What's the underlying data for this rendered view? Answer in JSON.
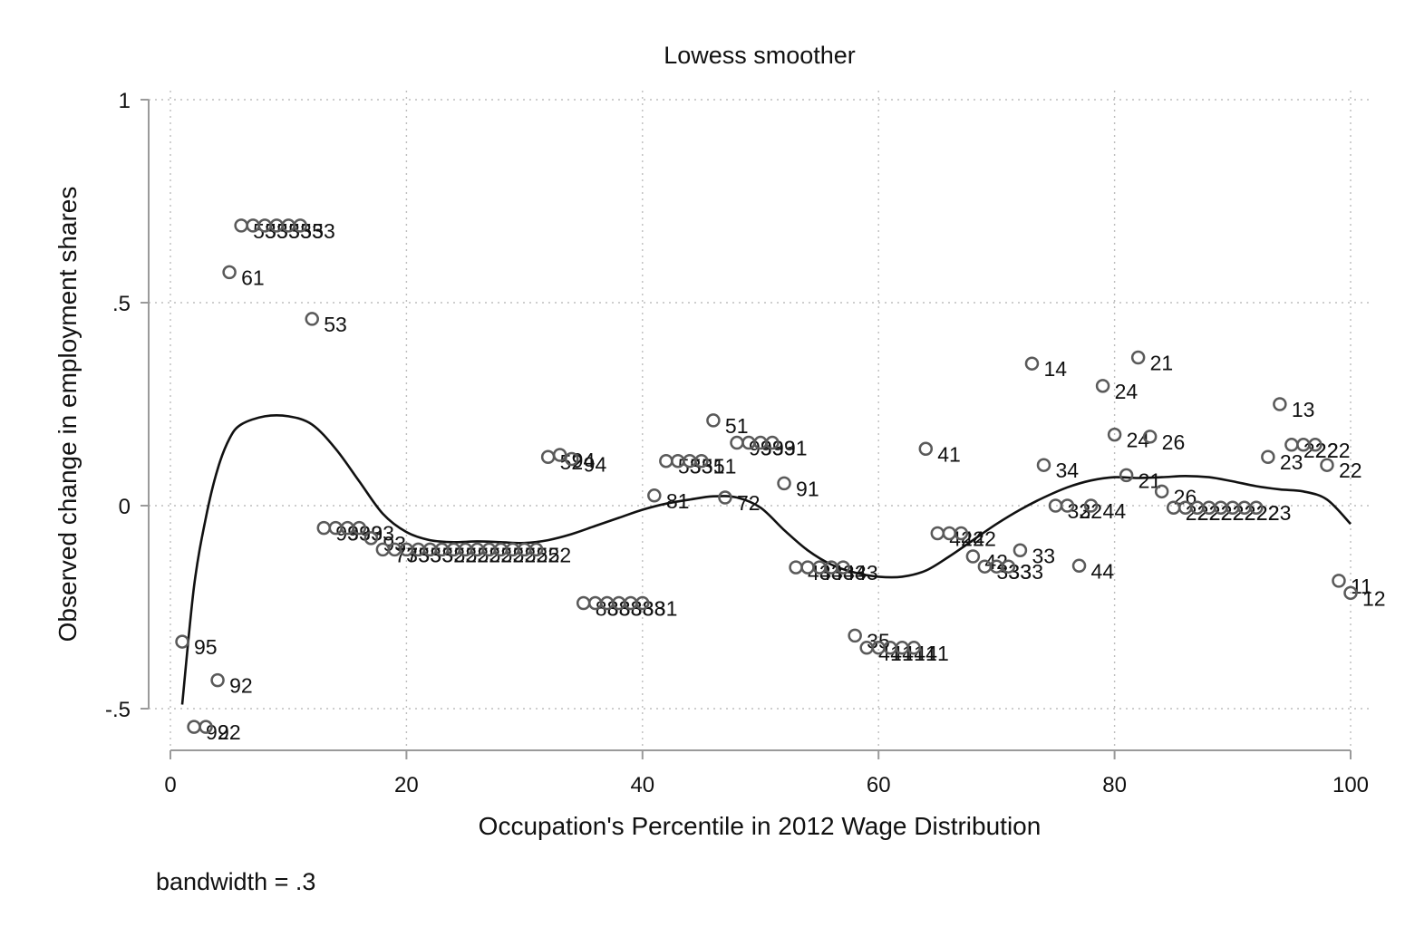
{
  "chart_data": {
    "type": "scatter",
    "title": "Lowess smoother",
    "xlabel": "Occupation's Percentile in 2012 Wage Distribution",
    "ylabel": "Observed change in employment shares",
    "note": "bandwidth = .3",
    "xlim": [
      0,
      100
    ],
    "ylim": [
      -0.55,
      1
    ],
    "x_ticks": [
      0,
      20,
      40,
      60,
      80,
      100
    ],
    "x_tick_labels": [
      "0",
      "20",
      "40",
      "60",
      "80",
      "100"
    ],
    "y_ticks": [
      -0.5,
      0,
      0.5,
      1
    ],
    "y_tick_labels": [
      "-.5",
      "0",
      ".5",
      "1"
    ],
    "grid": true,
    "legend": "none",
    "colors": {
      "marker": "#5a5a5a",
      "line": "#111111",
      "grid": "#bdbdbd",
      "axis": "#9a9a9a"
    },
    "points": [
      {
        "x": 1,
        "y": -0.335,
        "label": "95"
      },
      {
        "x": 2,
        "y": -0.545,
        "label": "92"
      },
      {
        "x": 3,
        "y": -0.545,
        "label": "92"
      },
      {
        "x": 4,
        "y": -0.43,
        "label": "92"
      },
      {
        "x": 5,
        "y": 0.575,
        "label": "61"
      },
      {
        "x": 6,
        "y": 0.69,
        "label": "53"
      },
      {
        "x": 7,
        "y": 0.69,
        "label": "53"
      },
      {
        "x": 8,
        "y": 0.69,
        "label": "53"
      },
      {
        "x": 9,
        "y": 0.69,
        "label": "53"
      },
      {
        "x": 10,
        "y": 0.69,
        "label": "53"
      },
      {
        "x": 11,
        "y": 0.69,
        "label": "53"
      },
      {
        "x": 12,
        "y": 0.46,
        "label": "53"
      },
      {
        "x": 13,
        "y": -0.055,
        "label": "93"
      },
      {
        "x": 14,
        "y": -0.055,
        "label": "93"
      },
      {
        "x": 15,
        "y": -0.055,
        "label": "93"
      },
      {
        "x": 16,
        "y": -0.055,
        "label": "93"
      },
      {
        "x": 17,
        "y": -0.08,
        "label": "93"
      },
      {
        "x": 18,
        "y": -0.108,
        "label": "73"
      },
      {
        "x": 19,
        "y": -0.108,
        "label": "73"
      },
      {
        "x": 20,
        "y": -0.108,
        "label": "53"
      },
      {
        "x": 21,
        "y": -0.108,
        "label": "53"
      },
      {
        "x": 22,
        "y": -0.108,
        "label": "52"
      },
      {
        "x": 23,
        "y": -0.108,
        "label": "52"
      },
      {
        "x": 24,
        "y": -0.108,
        "label": "52"
      },
      {
        "x": 25,
        "y": -0.108,
        "label": "52"
      },
      {
        "x": 26,
        "y": -0.108,
        "label": "52"
      },
      {
        "x": 27,
        "y": -0.108,
        "label": "52"
      },
      {
        "x": 28,
        "y": -0.108,
        "label": "52"
      },
      {
        "x": 29,
        "y": -0.108,
        "label": "52"
      },
      {
        "x": 30,
        "y": -0.108,
        "label": "52"
      },
      {
        "x": 31,
        "y": -0.108,
        "label": "52"
      },
      {
        "x": 32,
        "y": 0.12,
        "label": "52"
      },
      {
        "x": 33,
        "y": 0.125,
        "label": "94"
      },
      {
        "x": 34,
        "y": 0.115,
        "label": "94"
      },
      {
        "x": 35,
        "y": -0.24,
        "label": "83"
      },
      {
        "x": 36,
        "y": -0.24,
        "label": "83"
      },
      {
        "x": 37,
        "y": -0.24,
        "label": "83"
      },
      {
        "x": 38,
        "y": -0.24,
        "label": "83"
      },
      {
        "x": 39,
        "y": -0.24,
        "label": "83"
      },
      {
        "x": 40,
        "y": -0.24,
        "label": "81"
      },
      {
        "x": 41,
        "y": 0.025,
        "label": "81"
      },
      {
        "x": 42,
        "y": 0.11,
        "label": "53"
      },
      {
        "x": 43,
        "y": 0.11,
        "label": "53"
      },
      {
        "x": 44,
        "y": 0.11,
        "label": "51"
      },
      {
        "x": 45,
        "y": 0.11,
        "label": "51"
      },
      {
        "x": 46,
        "y": 0.21,
        "label": "51"
      },
      {
        "x": 47,
        "y": 0.02,
        "label": "72"
      },
      {
        "x": 48,
        "y": 0.155,
        "label": "93"
      },
      {
        "x": 49,
        "y": 0.155,
        "label": "93"
      },
      {
        "x": 50,
        "y": 0.155,
        "label": "93"
      },
      {
        "x": 51,
        "y": 0.155,
        "label": "91"
      },
      {
        "x": 52,
        "y": 0.055,
        "label": "91"
      },
      {
        "x": 53,
        "y": -0.152,
        "label": "43"
      },
      {
        "x": 54,
        "y": -0.152,
        "label": "43"
      },
      {
        "x": 55,
        "y": -0.152,
        "label": "43"
      },
      {
        "x": 56,
        "y": -0.152,
        "label": "43"
      },
      {
        "x": 57,
        "y": -0.152,
        "label": "43"
      },
      {
        "x": 58,
        "y": -0.32,
        "label": "35"
      },
      {
        "x": 59,
        "y": -0.35,
        "label": "41"
      },
      {
        "x": 60,
        "y": -0.35,
        "label": "41"
      },
      {
        "x": 61,
        "y": -0.35,
        "label": "41"
      },
      {
        "x": 62,
        "y": -0.35,
        "label": "41"
      },
      {
        "x": 63,
        "y": -0.35,
        "label": "41"
      },
      {
        "x": 64,
        "y": 0.14,
        "label": "41"
      },
      {
        "x": 65,
        "y": -0.068,
        "label": "42"
      },
      {
        "x": 66,
        "y": -0.068,
        "label": "42"
      },
      {
        "x": 67,
        "y": -0.068,
        "label": "42"
      },
      {
        "x": 68,
        "y": -0.125,
        "label": "42"
      },
      {
        "x": 69,
        "y": -0.15,
        "label": "33"
      },
      {
        "x": 70,
        "y": -0.15,
        "label": "33"
      },
      {
        "x": 71,
        "y": -0.15,
        "label": "33"
      },
      {
        "x": 72,
        "y": -0.11,
        "label": "33"
      },
      {
        "x": 73,
        "y": 0.35,
        "label": "14"
      },
      {
        "x": 74,
        "y": 0.1,
        "label": "34"
      },
      {
        "x": 75,
        "y": 0.0,
        "label": "32"
      },
      {
        "x": 76,
        "y": 0.0,
        "label": "32"
      },
      {
        "x": 77,
        "y": -0.148,
        "label": "44"
      },
      {
        "x": 78,
        "y": 0.0,
        "label": "44"
      },
      {
        "x": 79,
        "y": 0.295,
        "label": "24"
      },
      {
        "x": 80,
        "y": 0.175,
        "label": "24"
      },
      {
        "x": 81,
        "y": 0.075,
        "label": "21"
      },
      {
        "x": 82,
        "y": 0.365,
        "label": "21"
      },
      {
        "x": 83,
        "y": 0.17,
        "label": "26"
      },
      {
        "x": 84,
        "y": 0.035,
        "label": "26"
      },
      {
        "x": 85,
        "y": -0.005,
        "label": "22"
      },
      {
        "x": 86,
        "y": -0.005,
        "label": "22"
      },
      {
        "x": 87,
        "y": -0.005,
        "label": "22"
      },
      {
        "x": 88,
        "y": -0.005,
        "label": "22"
      },
      {
        "x": 89,
        "y": -0.005,
        "label": "22"
      },
      {
        "x": 90,
        "y": -0.005,
        "label": "22"
      },
      {
        "x": 91,
        "y": -0.005,
        "label": "22"
      },
      {
        "x": 92,
        "y": -0.005,
        "label": "23"
      },
      {
        "x": 93,
        "y": 0.12,
        "label": "23"
      },
      {
        "x": 94,
        "y": 0.25,
        "label": "13"
      },
      {
        "x": 95,
        "y": 0.15,
        "label": "22"
      },
      {
        "x": 96,
        "y": 0.15,
        "label": "22"
      },
      {
        "x": 97,
        "y": 0.15,
        "label": "22"
      },
      {
        "x": 98,
        "y": 0.1,
        "label": "22"
      },
      {
        "x": 99,
        "y": -0.185,
        "label": "11"
      },
      {
        "x": 100,
        "y": -0.215,
        "label": "12"
      }
    ],
    "lowess_curve": [
      {
        "x": 1,
        "y": -0.49
      },
      {
        "x": 2,
        "y": -0.2
      },
      {
        "x": 3,
        "y": -0.03
      },
      {
        "x": 4,
        "y": 0.09
      },
      {
        "x": 5,
        "y": 0.165
      },
      {
        "x": 6,
        "y": 0.2
      },
      {
        "x": 8,
        "y": 0.22
      },
      {
        "x": 10,
        "y": 0.22
      },
      {
        "x": 12,
        "y": 0.2
      },
      {
        "x": 14,
        "y": 0.14
      },
      {
        "x": 16,
        "y": 0.06
      },
      {
        "x": 18,
        "y": -0.02
      },
      {
        "x": 20,
        "y": -0.065
      },
      {
        "x": 22,
        "y": -0.085
      },
      {
        "x": 24,
        "y": -0.09
      },
      {
        "x": 26,
        "y": -0.088
      },
      {
        "x": 28,
        "y": -0.09
      },
      {
        "x": 30,
        "y": -0.092
      },
      {
        "x": 32,
        "y": -0.085
      },
      {
        "x": 34,
        "y": -0.07
      },
      {
        "x": 36,
        "y": -0.05
      },
      {
        "x": 38,
        "y": -0.03
      },
      {
        "x": 40,
        "y": -0.01
      },
      {
        "x": 42,
        "y": 0.005
      },
      {
        "x": 44,
        "y": 0.015
      },
      {
        "x": 46,
        "y": 0.023
      },
      {
        "x": 48,
        "y": 0.02
      },
      {
        "x": 50,
        "y": -0.005
      },
      {
        "x": 52,
        "y": -0.06
      },
      {
        "x": 54,
        "y": -0.11
      },
      {
        "x": 56,
        "y": -0.145
      },
      {
        "x": 58,
        "y": -0.165
      },
      {
        "x": 60,
        "y": -0.175
      },
      {
        "x": 62,
        "y": -0.175
      },
      {
        "x": 64,
        "y": -0.16
      },
      {
        "x": 66,
        "y": -0.125
      },
      {
        "x": 68,
        "y": -0.085
      },
      {
        "x": 70,
        "y": -0.045
      },
      {
        "x": 72,
        "y": -0.01
      },
      {
        "x": 74,
        "y": 0.02
      },
      {
        "x": 76,
        "y": 0.045
      },
      {
        "x": 78,
        "y": 0.062
      },
      {
        "x": 80,
        "y": 0.07
      },
      {
        "x": 82,
        "y": 0.068
      },
      {
        "x": 84,
        "y": 0.07
      },
      {
        "x": 86,
        "y": 0.073
      },
      {
        "x": 88,
        "y": 0.07
      },
      {
        "x": 90,
        "y": 0.06
      },
      {
        "x": 92,
        "y": 0.048
      },
      {
        "x": 94,
        "y": 0.04
      },
      {
        "x": 96,
        "y": 0.035
      },
      {
        "x": 98,
        "y": 0.015
      },
      {
        "x": 100,
        "y": -0.045
      }
    ]
  }
}
